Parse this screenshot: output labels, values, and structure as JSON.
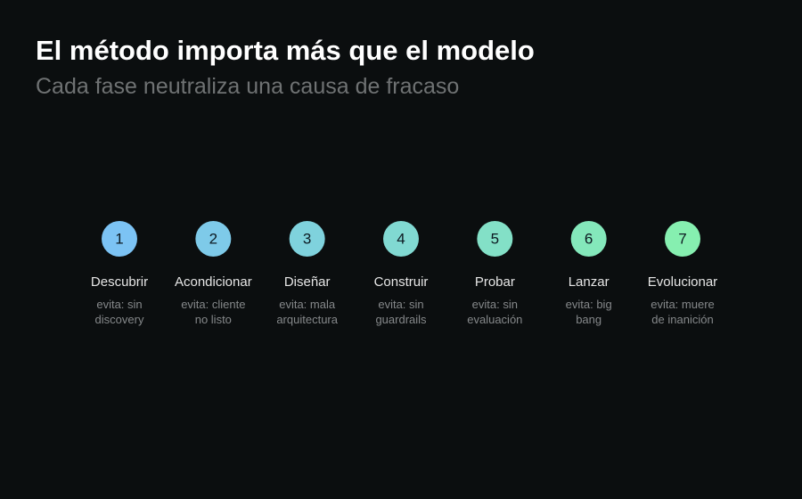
{
  "header": {
    "title": "El método importa más que el modelo",
    "subtitle": "Cada fase neutraliza una causa de fracaso"
  },
  "steps": [
    {
      "number": 1,
      "name": "Descubrir",
      "note": [
        "evita: sin",
        "discovery"
      ]
    },
    {
      "number": 2,
      "name": "Acondicionar",
      "note": [
        "evita: cliente",
        "no listo"
      ]
    },
    {
      "number": 3,
      "name": "Diseñar",
      "note": [
        "evita: mala",
        "arquitectura"
      ]
    },
    {
      "number": 4,
      "name": "Construir",
      "note": [
        "evita: sin",
        "guardrails"
      ]
    },
    {
      "number": 5,
      "name": "Probar",
      "note": [
        "evita: sin",
        "evaluación"
      ]
    },
    {
      "number": 6,
      "name": "Lanzar",
      "note": [
        "evita: big",
        "bang"
      ]
    },
    {
      "number": 7,
      "name": "Evolucionar",
      "note": [
        "evita: muere",
        "de inanición"
      ]
    }
  ]
}
